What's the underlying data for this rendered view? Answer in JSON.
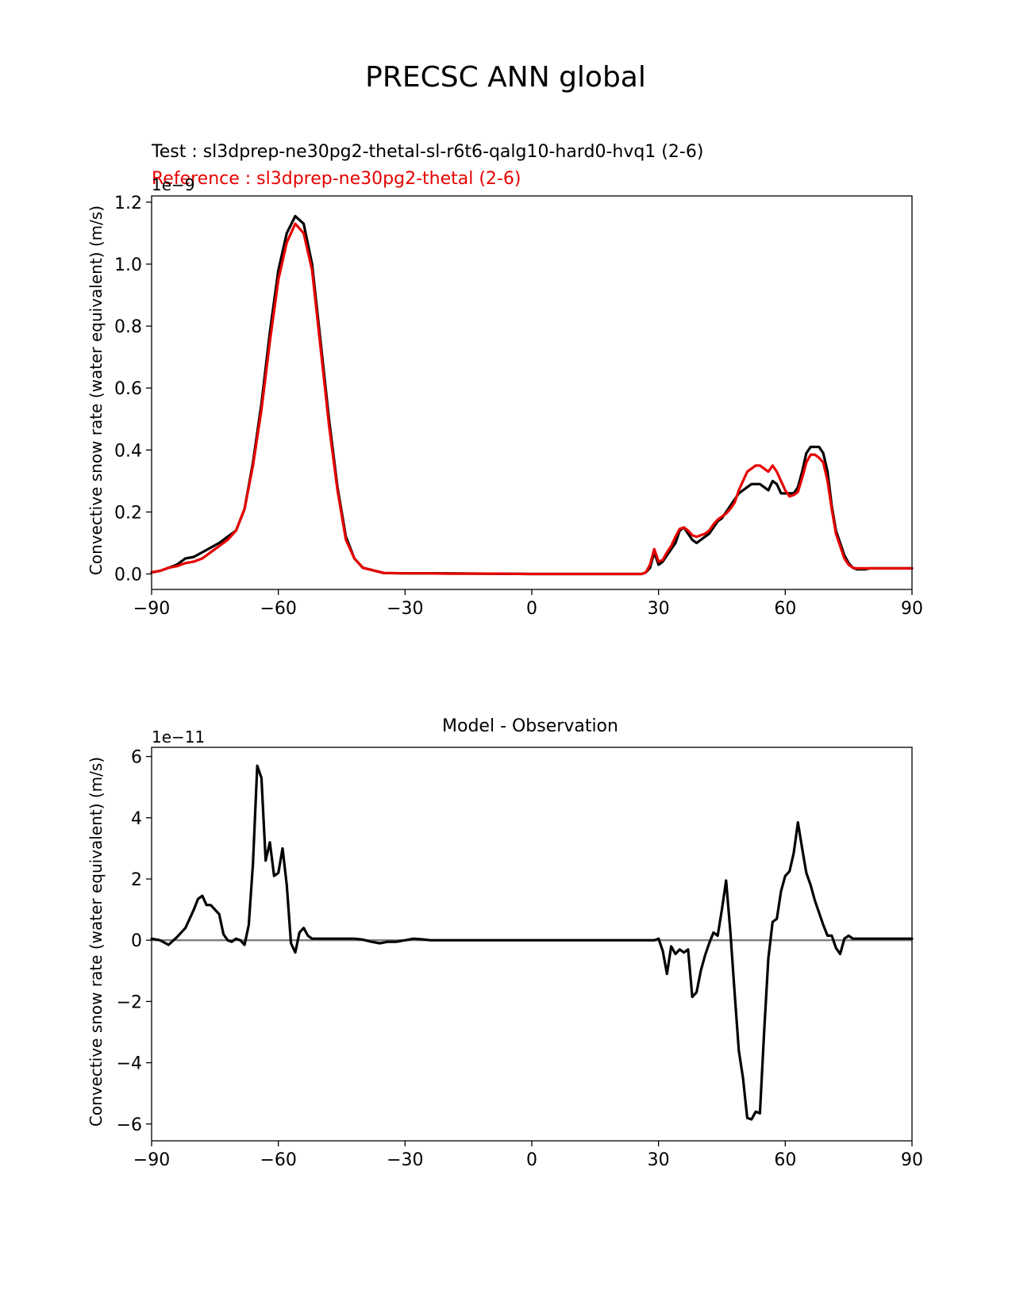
{
  "figure_title": "PRECSC ANN global",
  "chart_data": [
    {
      "type": "line",
      "test_label": "Test : sl3dprep-ne30pg2-thetal-sl-r6t6-qalg10-hard0-hvq1 (2-6)",
      "reference_label": "Reference : sl3dprep-ne30pg2-thetal (2-6)",
      "ylabel": "Convective snow rate (water equivalent) (m/s)",
      "offset_text": "1e−9",
      "xlim": [
        -90,
        90
      ],
      "ylim": [
        -0.05,
        1.22
      ],
      "xticks": [
        -90,
        -60,
        -30,
        0,
        30,
        60,
        90
      ],
      "xtick_labels": [
        "−90",
        "−60",
        "−30",
        "0",
        "30",
        "60",
        "90"
      ],
      "yticks": [
        0.0,
        0.2,
        0.4,
        0.6,
        0.8,
        1.0,
        1.2
      ],
      "ytick_labels": [
        "0.0",
        "0.2",
        "0.4",
        "0.6",
        "0.8",
        "1.0",
        "1.2"
      ],
      "grid": false,
      "series": [
        {
          "color": "#000000",
          "x": [
            -90,
            -88,
            -86,
            -84,
            -82,
            -80,
            -78,
            -76,
            -74,
            -72,
            -70,
            -68,
            -66,
            -64,
            -62,
            -60,
            -58,
            -56,
            -54,
            -52,
            -50,
            -48,
            -46,
            -44,
            -42,
            -40,
            -35,
            -30,
            -25,
            -20,
            -10,
            0,
            10,
            20,
            24,
            26,
            27,
            28,
            29,
            30,
            31,
            32,
            33,
            34,
            35,
            36,
            37,
            38,
            39,
            40,
            41,
            42,
            43,
            44,
            45,
            46,
            47,
            48,
            49,
            50,
            51,
            52,
            53,
            54,
            55,
            56,
            57,
            58,
            59,
            60,
            61,
            62,
            63,
            64,
            65,
            66,
            67,
            68,
            69,
            70,
            71,
            72,
            73,
            74,
            75,
            76,
            77,
            78,
            79,
            80,
            81,
            82,
            83,
            84,
            85,
            86,
            87,
            88,
            89,
            90
          ],
          "y": [
            0.005,
            0.01,
            0.02,
            0.03,
            0.05,
            0.055,
            0.07,
            0.085,
            0.1,
            0.12,
            0.14,
            0.21,
            0.36,
            0.55,
            0.78,
            0.98,
            1.1,
            1.155,
            1.13,
            1.0,
            0.75,
            0.5,
            0.28,
            0.12,
            0.05,
            0.02,
            0.003,
            0.002,
            0.002,
            0.002,
            0.001,
            0.0,
            0.0,
            0.0,
            0.0,
            0.0,
            0.005,
            0.02,
            0.07,
            0.03,
            0.04,
            0.06,
            0.08,
            0.1,
            0.14,
            0.15,
            0.13,
            0.11,
            0.1,
            0.11,
            0.12,
            0.13,
            0.15,
            0.17,
            0.18,
            0.2,
            0.22,
            0.24,
            0.26,
            0.27,
            0.28,
            0.29,
            0.29,
            0.29,
            0.28,
            0.27,
            0.3,
            0.29,
            0.26,
            0.26,
            0.26,
            0.26,
            0.28,
            0.33,
            0.39,
            0.41,
            0.41,
            0.41,
            0.39,
            0.33,
            0.22,
            0.14,
            0.1,
            0.06,
            0.035,
            0.02,
            0.015,
            0.015,
            0.015,
            0.018,
            0.018,
            0.018,
            0.018,
            0.018,
            0.018,
            0.018,
            0.018,
            0.018,
            0.018,
            0.018
          ]
        },
        {
          "color": "#e60000",
          "x": [
            -90,
            -88,
            -86,
            -84,
            -82,
            -80,
            -78,
            -76,
            -74,
            -72,
            -70,
            -68,
            -66,
            -64,
            -62,
            -60,
            -58,
            -56,
            -54,
            -52,
            -50,
            -48,
            -46,
            -44,
            -42,
            -40,
            -35,
            -30,
            -25,
            -20,
            -10,
            0,
            10,
            20,
            24,
            26,
            27,
            28,
            29,
            30,
            31,
            32,
            33,
            34,
            35,
            36,
            37,
            38,
            39,
            40,
            41,
            42,
            43,
            44,
            45,
            46,
            47,
            48,
            49,
            50,
            51,
            52,
            53,
            54,
            55,
            56,
            57,
            58,
            59,
            60,
            61,
            62,
            63,
            64,
            65,
            66,
            67,
            68,
            69,
            70,
            71,
            72,
            73,
            74,
            75,
            76,
            77,
            78,
            79,
            80,
            81,
            82,
            83,
            84,
            85,
            86,
            87,
            88,
            89,
            90
          ],
          "y": [
            0.005,
            0.01,
            0.02,
            0.025,
            0.035,
            0.04,
            0.05,
            0.07,
            0.09,
            0.11,
            0.14,
            0.21,
            0.35,
            0.53,
            0.75,
            0.95,
            1.07,
            1.13,
            1.1,
            0.98,
            0.73,
            0.48,
            0.27,
            0.11,
            0.05,
            0.02,
            0.003,
            0.002,
            0.002,
            0.001,
            0.001,
            0.0,
            0.0,
            0.0,
            0.0,
            0.0,
            0.005,
            0.03,
            0.08,
            0.04,
            0.045,
            0.07,
            0.09,
            0.12,
            0.145,
            0.15,
            0.14,
            0.125,
            0.12,
            0.125,
            0.13,
            0.14,
            0.16,
            0.175,
            0.185,
            0.195,
            0.21,
            0.23,
            0.27,
            0.3,
            0.33,
            0.34,
            0.35,
            0.35,
            0.34,
            0.33,
            0.35,
            0.33,
            0.3,
            0.27,
            0.25,
            0.255,
            0.265,
            0.31,
            0.36,
            0.385,
            0.385,
            0.375,
            0.36,
            0.3,
            0.21,
            0.13,
            0.09,
            0.05,
            0.03,
            0.02,
            0.018,
            0.018,
            0.018,
            0.018,
            0.018,
            0.018,
            0.018,
            0.018,
            0.018,
            0.018,
            0.018,
            0.018,
            0.018,
            0.018
          ]
        }
      ]
    },
    {
      "type": "line",
      "title": "Model - Observation",
      "ylabel": "Convective snow rate (water equivalent) (m/s)",
      "offset_text": "1e−11",
      "xlim": [
        -90,
        90
      ],
      "ylim": [
        -6.55,
        6.3
      ],
      "xticks": [
        -90,
        -60,
        -30,
        0,
        30,
        60,
        90
      ],
      "xtick_labels": [
        "−90",
        "−60",
        "−30",
        "0",
        "30",
        "60",
        "90"
      ],
      "yticks": [
        -6,
        -4,
        -2,
        0,
        2,
        4,
        6
      ],
      "ytick_labels": [
        "−6",
        "−4",
        "−2",
        "0",
        "2",
        "4",
        "6"
      ],
      "grid": false,
      "zero_line_color": "#808080",
      "series": [
        {
          "color": "#000000",
          "x": [
            -90,
            -88,
            -86,
            -84,
            -82,
            -81,
            -80,
            -79,
            -78,
            -77,
            -76,
            -75,
            -74,
            -73,
            -72,
            -71,
            -70,
            -69,
            -68,
            -67,
            -66,
            -65,
            -64,
            -63,
            -62,
            -61,
            -60,
            -59,
            -58,
            -57,
            -56,
            -55,
            -54,
            -53,
            -52,
            -51,
            -50,
            -49,
            -48,
            -47,
            -46,
            -45,
            -44,
            -42,
            -40,
            -38,
            -36,
            -34,
            -32,
            -30,
            -28,
            -26,
            -24,
            -20,
            -10,
            0,
            10,
            20,
            25,
            26,
            27,
            28,
            29,
            30,
            31,
            32,
            33,
            34,
            35,
            36,
            37,
            38,
            39,
            40,
            41,
            42,
            43,
            44,
            45,
            46,
            47,
            48,
            49,
            50,
            51,
            52,
            53,
            54,
            55,
            56,
            57,
            58,
            59,
            60,
            61,
            62,
            63,
            64,
            65,
            66,
            67,
            68,
            69,
            70,
            71,
            72,
            73,
            74,
            75,
            76,
            77,
            78,
            79,
            80,
            81,
            82,
            83,
            84,
            85,
            86,
            87,
            88,
            89,
            90
          ],
          "y": [
            0.05,
            0.0,
            -0.15,
            0.1,
            0.4,
            0.7,
            1.0,
            1.35,
            1.45,
            1.15,
            1.15,
            1.0,
            0.85,
            0.2,
            0.0,
            -0.05,
            0.05,
            0.0,
            -0.15,
            0.5,
            2.5,
            5.7,
            5.3,
            2.6,
            3.2,
            2.1,
            2.2,
            3.0,
            1.8,
            -0.1,
            -0.4,
            0.25,
            0.4,
            0.15,
            0.05,
            0.05,
            0.05,
            0.05,
            0.05,
            0.05,
            0.05,
            0.05,
            0.05,
            0.05,
            0.02,
            -0.05,
            -0.1,
            -0.05,
            -0.05,
            0.0,
            0.05,
            0.03,
            0.0,
            0.0,
            0.0,
            0.0,
            0.0,
            0.0,
            0.0,
            0.0,
            0.0,
            0.0,
            0.0,
            0.05,
            -0.35,
            -1.1,
            -0.2,
            -0.45,
            -0.3,
            -0.4,
            -0.3,
            -1.85,
            -1.7,
            -1.0,
            -0.5,
            -0.1,
            0.25,
            0.15,
            1.0,
            1.95,
            0.3,
            -1.7,
            -3.6,
            -4.5,
            -5.8,
            -5.85,
            -5.6,
            -5.65,
            -3.0,
            -0.6,
            0.6,
            0.7,
            1.6,
            2.1,
            2.25,
            2.85,
            3.85,
            3.0,
            2.2,
            1.8,
            1.3,
            0.9,
            0.5,
            0.15,
            0.15,
            -0.25,
            -0.45,
            0.05,
            0.15,
            0.05,
            0.05,
            0.05,
            0.05,
            0.05,
            0.05,
            0.05,
            0.05,
            0.05,
            0.05,
            0.05,
            0.05,
            0.05,
            0.05,
            0.05
          ]
        }
      ]
    }
  ]
}
